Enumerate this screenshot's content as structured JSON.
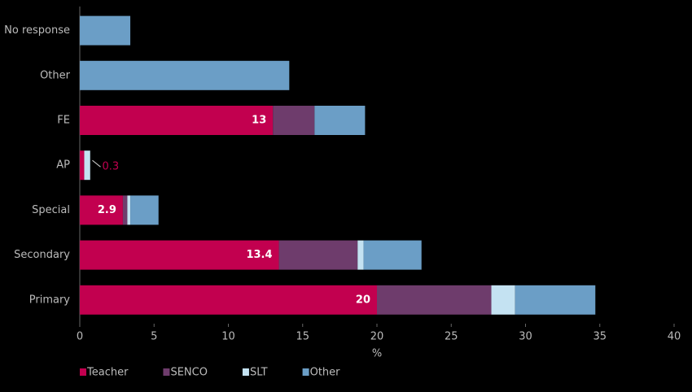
{
  "chart_data": {
    "type": "stacked-bar-horizontal",
    "categories": [
      "No response",
      "Other",
      "FE",
      "AP",
      "Special",
      "Secondary",
      "Primary"
    ],
    "series": [
      {
        "name": "Teacher",
        "color": "#c2004f",
        "values": [
          null,
          null,
          13,
          0.3,
          2.9,
          13.4,
          20
        ]
      },
      {
        "name": "SENCO",
        "color": "#6e3c6c",
        "values": [
          null,
          null,
          2.8,
          null,
          0.3,
          5.3,
          7.7
        ]
      },
      {
        "name": "SLT",
        "color": "#c4e2f2",
        "values": [
          null,
          null,
          null,
          0.4,
          0.2,
          0.4,
          1.6
        ]
      },
      {
        "name": "Other",
        "color": "#6b9ec6",
        "values": [
          3.4,
          14.1,
          3.4,
          null,
          1.9,
          3.9,
          5.4
        ]
      }
    ],
    "xlabel": "%",
    "xlim": [
      0,
      40
    ],
    "xticks": [
      0,
      5,
      10,
      15,
      20,
      25,
      30,
      35,
      40
    ]
  }
}
